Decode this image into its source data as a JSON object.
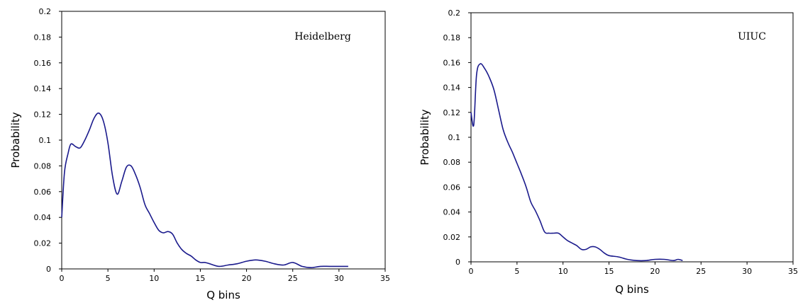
{
  "chart_data": [
    {
      "type": "line",
      "annotation": "Heidelberg",
      "xlabel": "Q bins",
      "ylabel": "Probability",
      "xlim": [
        0,
        35
      ],
      "ylim": [
        0,
        0.2
      ],
      "x_ticks": [
        "0",
        "5",
        "10",
        "15",
        "20",
        "25",
        "30",
        "35"
      ],
      "y_ticks": [
        "0",
        "0.02",
        "0.04",
        "0.06",
        "0.08",
        "0.1",
        "0.12",
        "0.14",
        "0.16",
        "0.18",
        "0.2"
      ],
      "grid": false,
      "color": "#1a1a8c",
      "series": [
        {
          "x": [
            0,
            0.3,
            0.7,
            1,
            1.5,
            2,
            2.5,
            3,
            3.5,
            4,
            4.5,
            5,
            5.5,
            6,
            6.5,
            7,
            7.5,
            8,
            8.5,
            9,
            9.5,
            10,
            10.5,
            11,
            11.5,
            12,
            12.5,
            13,
            13.5,
            14,
            14.5,
            15,
            15.5,
            16,
            17,
            18,
            19,
            20,
            21,
            22,
            23,
            24,
            25,
            26,
            27,
            28,
            29,
            30,
            31
          ],
          "values": [
            0.04,
            0.075,
            0.09,
            0.097,
            0.095,
            0.094,
            0.1,
            0.108,
            0.117,
            0.121,
            0.115,
            0.098,
            0.072,
            0.058,
            0.068,
            0.079,
            0.08,
            0.073,
            0.063,
            0.05,
            0.043,
            0.036,
            0.03,
            0.028,
            0.029,
            0.027,
            0.02,
            0.015,
            0.012,
            0.01,
            0.007,
            0.005,
            0.005,
            0.004,
            0.002,
            0.003,
            0.004,
            0.006,
            0.007,
            0.006,
            0.004,
            0.003,
            0.005,
            0.002,
            0.001,
            0.002,
            0.002,
            0.002,
            0.002
          ]
        }
      ]
    },
    {
      "type": "line",
      "annotation": "UIUC",
      "xlabel": "Q bins",
      "ylabel": "Probability",
      "xlim": [
        0,
        35
      ],
      "ylim": [
        0,
        0.2
      ],
      "x_ticks": [
        "0",
        "5",
        "10",
        "15",
        "20",
        "25",
        "30",
        "35"
      ],
      "y_ticks": [
        "0",
        "0.02",
        "0.04",
        "0.06",
        "0.08",
        "0.1",
        "0.12",
        "0.14",
        "0.16",
        "0.18",
        "0.2"
      ],
      "grid": false,
      "color": "#1a1a8c",
      "series": [
        {
          "x": [
            0,
            0.3,
            0.6,
            1,
            1.5,
            2,
            2.5,
            3,
            3.5,
            4,
            4.5,
            5,
            5.5,
            6,
            6.5,
            7,
            7.5,
            8,
            8.5,
            9,
            9.5,
            10,
            10.5,
            11,
            11.5,
            12,
            12.5,
            13,
            13.5,
            14,
            14.5,
            15,
            16,
            17,
            18,
            19,
            20,
            21,
            22,
            22.5,
            23
          ],
          "values": [
            0.12,
            0.11,
            0.15,
            0.159,
            0.155,
            0.148,
            0.138,
            0.122,
            0.106,
            0.096,
            0.088,
            0.079,
            0.07,
            0.06,
            0.048,
            0.041,
            0.033,
            0.024,
            0.023,
            0.023,
            0.023,
            0.02,
            0.017,
            0.015,
            0.013,
            0.01,
            0.01,
            0.012,
            0.012,
            0.01,
            0.007,
            0.005,
            0.004,
            0.002,
            0.001,
            0.001,
            0.002,
            0.002,
            0.001,
            0.002,
            0.001
          ]
        }
      ]
    }
  ]
}
